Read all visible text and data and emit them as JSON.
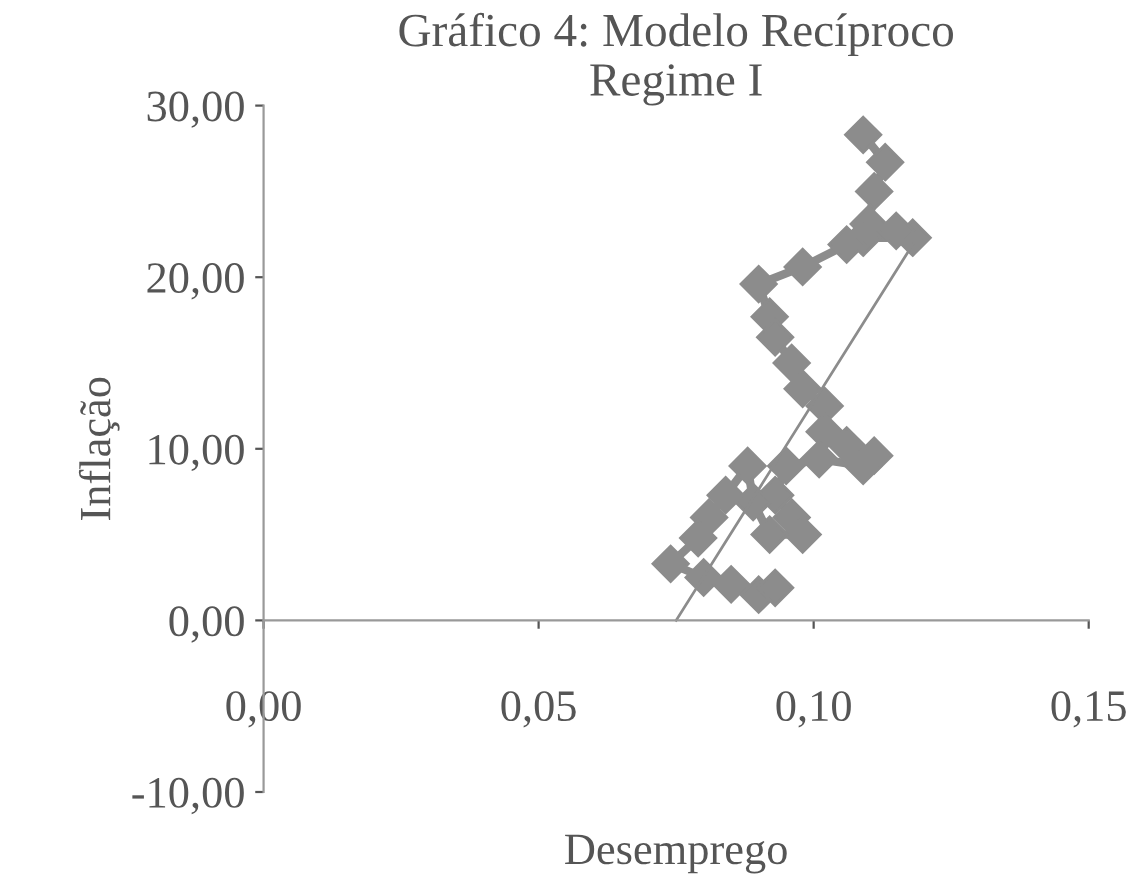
{
  "chart_data": {
    "type": "line",
    "title": "Gráfico 4: Modelo Recíproco\nRegime I",
    "xlabel": "Desemprego",
    "ylabel": "Inflação",
    "marker": "diamond",
    "grid": false,
    "legend": false,
    "xlim": [
      0,
      0.15
    ],
    "ylim": [
      -10,
      30
    ],
    "xticks": [
      {
        "value": 0,
        "label": "0,00"
      },
      {
        "value": 0.05,
        "label": "0,05"
      },
      {
        "value": 0.1,
        "label": "0,10"
      },
      {
        "value": 0.15,
        "label": "0,15"
      }
    ],
    "yticks": [
      {
        "value": -10,
        "label": "-10,00"
      },
      {
        "value": 0,
        "label": "0,00"
      },
      {
        "value": 10,
        "label": "10,00"
      },
      {
        "value": 20,
        "label": "20,00"
      },
      {
        "value": 30,
        "label": "30,00"
      }
    ],
    "series": [
      {
        "color": "#8c8c8c",
        "x": [
          0.109,
          0.113,
          0.111,
          0.11,
          0.109,
          0.118,
          0.115,
          0.106,
          0.098,
          0.09,
          0.092,
          0.093,
          0.096,
          0.098,
          0.102,
          0.102,
          0.106,
          0.111,
          0.109,
          0.101,
          0.095,
          0.093,
          0.096,
          0.098,
          0.092,
          0.089,
          0.088,
          0.084,
          0.081,
          0.079,
          0.074,
          0.08,
          0.085,
          0.09,
          0.093
        ],
        "values": [
          28.3,
          26.7,
          25.0,
          23.1,
          22.3,
          22.3,
          22.7,
          21.9,
          20.6,
          19.6,
          17.7,
          16.5,
          15.0,
          13.5,
          12.5,
          11.0,
          10.2,
          9.6,
          9.0,
          9.4,
          9.0,
          7.3,
          6.0,
          5.0,
          5.0,
          6.9,
          9.0,
          7.3,
          6.0,
          4.8,
          3.3,
          2.5,
          2.1,
          1.5,
          1.9
        ]
      },
      {
        "color": "#8c8c8c",
        "marker": "none",
        "x": [
          0.075,
          0.118
        ],
        "values": [
          0,
          21.9
        ]
      }
    ]
  }
}
